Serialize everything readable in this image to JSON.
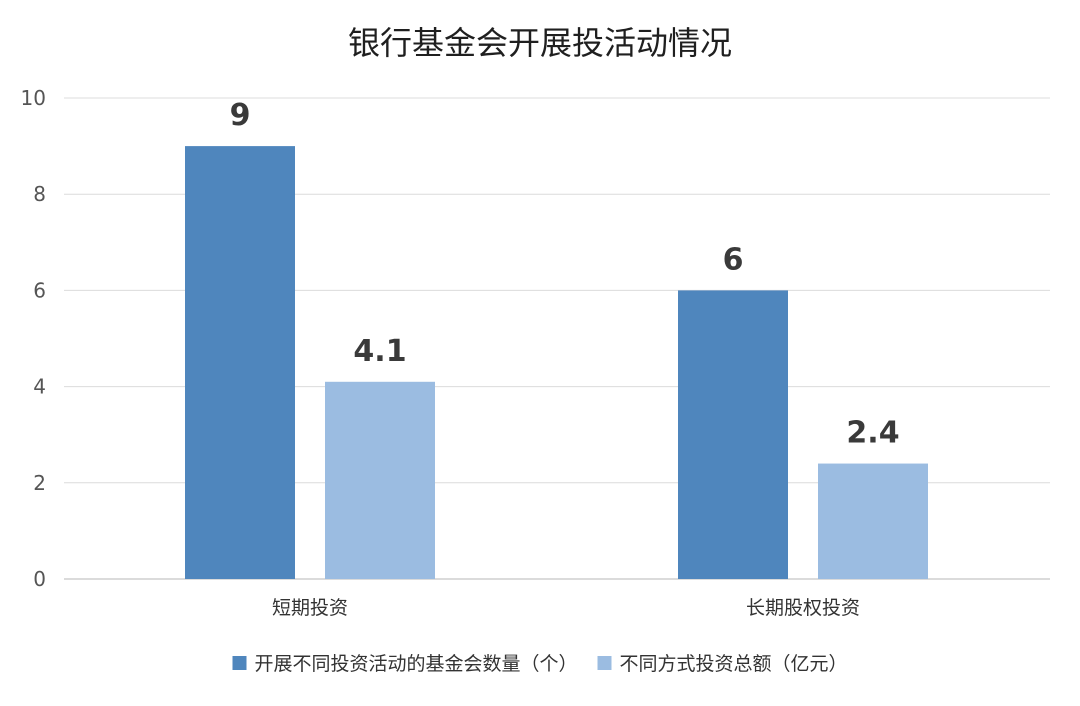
{
  "chart_data": {
    "type": "bar",
    "title": "银行基金会开展投活动情况",
    "categories": [
      "短期投资",
      "长期股权投资"
    ],
    "series": [
      {
        "name": "开展不同投资活动的基金会数量（个）",
        "values": [
          9,
          6
        ],
        "color": "#4f86bd"
      },
      {
        "name": "不同方式投资总额（亿元）",
        "values": [
          4.1,
          2.4
        ],
        "color": "#9bbce1"
      }
    ],
    "ylim": [
      0,
      10
    ],
    "yticks": [
      0,
      2,
      4,
      6,
      8,
      10
    ],
    "grid": true,
    "legend_position": "bottom"
  }
}
